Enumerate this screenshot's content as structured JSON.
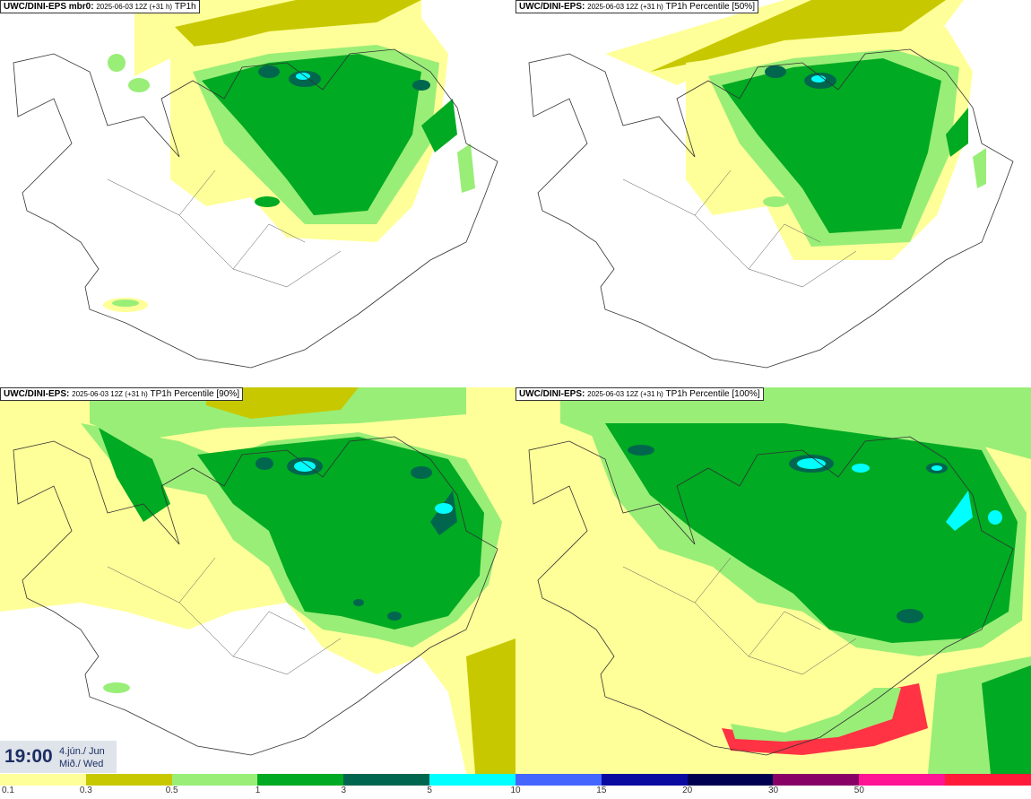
{
  "panels": [
    {
      "model": "UWC/DINI-EPS",
      "label": " mbr0:",
      "run": "2025-06-03 12Z (+31 h)",
      "field": "TP1h"
    },
    {
      "model": "UWC/DINI-EPS",
      "label": ":",
      "run": "2025-06-03 12Z (+31 h)",
      "field": "TP1h Percentile [50%]"
    },
    {
      "model": "UWC/DINI-EPS",
      "label": ":",
      "run": "2025-06-03 12Z (+31 h)",
      "field": "TP1h Percentile [90%]"
    },
    {
      "model": "UWC/DINI-EPS",
      "label": ":",
      "run": "2025-06-03 12Z (+31 h)",
      "field": "TP1h Percentile [100%]"
    }
  ],
  "valid_time": {
    "time": "19:00",
    "date": "4.jún./ Jun",
    "weekday": "Mið./ Wed"
  },
  "colorbar": {
    "colors": [
      "#ffff99",
      "#c8c800",
      "#99ee77",
      "#00aa22",
      "#00664e",
      "#00ffff",
      "#4466ff",
      "#0a0aa0",
      "#000050",
      "#880066",
      "#ff1493",
      "#ff1a3a"
    ],
    "labels": [
      "0.1",
      "0.3",
      "0.5",
      "1",
      "3",
      "5",
      "10",
      "15",
      "20",
      "30",
      "50"
    ]
  }
}
